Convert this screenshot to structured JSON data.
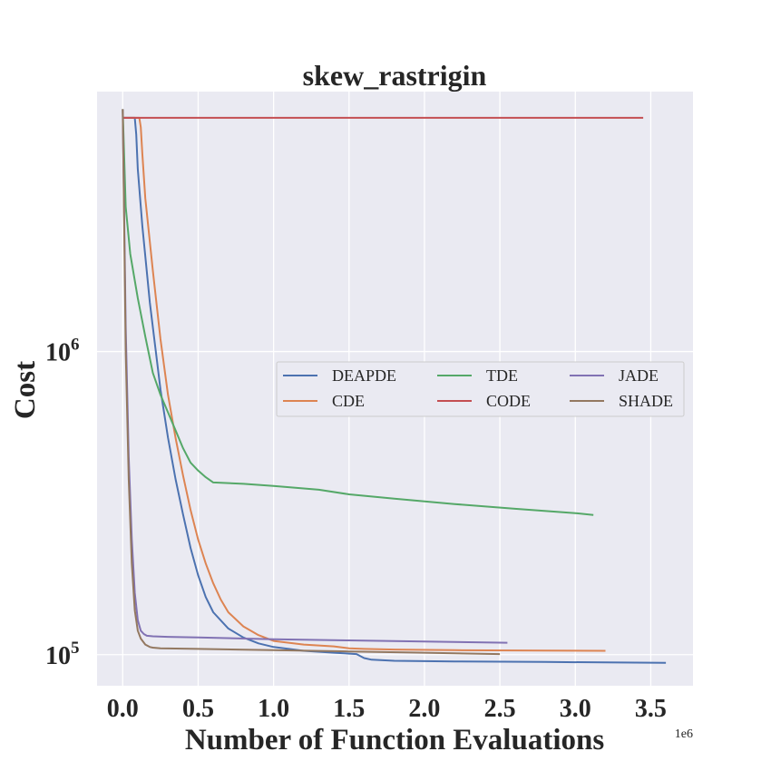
{
  "chart_data": {
    "type": "line",
    "title": "skew_rastrigin",
    "xlabel": "Number of Function Evaluations",
    "ylabel": "Cost",
    "x_offset_label": "1e6",
    "y_scale": "log",
    "xlim": [
      -0.17,
      3.78
    ],
    "ylim": [
      79000,
      7200000
    ],
    "x_ticks": [
      0.0,
      0.5,
      1.0,
      1.5,
      2.0,
      2.5,
      3.0,
      3.5
    ],
    "x_tick_labels": [
      "0.0",
      "0.5",
      "1.0",
      "1.5",
      "2.0",
      "2.5",
      "3.0",
      "3.5"
    ],
    "y_ticks": [
      {
        "value": 100000,
        "base": "10",
        "exp": "5"
      },
      {
        "value": 1000000,
        "base": "10",
        "exp": "6"
      }
    ],
    "grid": true,
    "legend": {
      "placement": "center-right",
      "columns": 3
    },
    "series": [
      {
        "name": "DEAPDE",
        "color": "#4c72b0",
        "x": [
          0,
          0.08,
          0.09,
          0.1,
          0.13,
          0.18,
          0.25,
          0.3,
          0.35,
          0.4,
          0.45,
          0.5,
          0.55,
          0.6,
          0.7,
          0.8,
          0.9,
          1.0,
          1.2,
          1.4,
          1.55,
          1.6,
          1.65,
          1.8,
          2.2,
          2.8,
          3.2,
          3.6
        ],
        "y": [
          5900000.0,
          5900000.0,
          5200000.0,
          4000000.0,
          2600000.0,
          1450000.0,
          750000,
          520000,
          380000,
          290000,
          225000,
          183000,
          155000,
          138000,
          122000,
          114000,
          109000,
          106000,
          103000,
          101500,
          100500,
          97500,
          96300,
          95500,
          95000,
          94600,
          94300,
          94000
        ]
      },
      {
        "name": "CDE",
        "color": "#dd8452",
        "x": [
          0,
          0.11,
          0.12,
          0.13,
          0.15,
          0.2,
          0.25,
          0.3,
          0.35,
          0.4,
          0.45,
          0.5,
          0.55,
          0.6,
          0.65,
          0.7,
          0.8,
          0.9,
          1.0,
          1.2,
          1.4,
          1.5,
          1.6,
          1.8,
          2.2,
          2.8,
          3.2
        ],
        "y": [
          5900000.0,
          5900000.0,
          5500000.0,
          4500000.0,
          3200000.0,
          1850000.0,
          1100000.0,
          720000,
          520000,
          390000,
          300000,
          240000,
          200000,
          172000,
          152000,
          138000,
          124000,
          116000,
          111000,
          108000,
          106500,
          105000,
          104500,
          104000,
          103500,
          103200,
          103000
        ]
      },
      {
        "name": "TDE",
        "color": "#55a868",
        "x": [
          0,
          0.02,
          0.05,
          0.1,
          0.15,
          0.2,
          0.25,
          0.3,
          0.35,
          0.4,
          0.45,
          0.5,
          0.55,
          0.6,
          0.8,
          1.0,
          1.3,
          1.5,
          1.8,
          2.2,
          2.6,
          3.0,
          3.12
        ],
        "y": [
          6300000.0,
          3000000.0,
          2100000.0,
          1500000.0,
          1120000.0,
          850000,
          720000,
          630000,
          550000,
          480000,
          430000,
          405000,
          385000,
          370000,
          366000,
          360000,
          350000,
          338000,
          327000,
          314000,
          303000,
          293000,
          289000
        ]
      },
      {
        "name": "CODE",
        "color": "#c44e52",
        "x": [
          0,
          0.08,
          1.0,
          2.0,
          3.0,
          3.45
        ],
        "y": [
          5900000.0,
          5900000.0,
          5900000.0,
          5900000.0,
          5900000.0,
          5900000.0
        ]
      },
      {
        "name": "JADE",
        "color": "#8172b3",
        "x": [
          0,
          0.02,
          0.04,
          0.06,
          0.08,
          0.1,
          0.12,
          0.14,
          0.16,
          0.2,
          0.3,
          0.5,
          1.0,
          1.5,
          2.0,
          2.55
        ],
        "y": [
          6300000.0,
          1200000.0,
          450000,
          240000,
          160000,
          130000,
          120000,
          117000,
          115500,
          115000,
          114500,
          114000,
          112500,
          111500,
          110500,
          109500
        ]
      },
      {
        "name": "SHADE",
        "color": "#937860",
        "x": [
          0,
          0.02,
          0.04,
          0.06,
          0.08,
          0.1,
          0.12,
          0.15,
          0.18,
          0.2,
          0.25,
          0.5,
          1.0,
          1.5,
          2.0,
          2.5
        ],
        "y": [
          6300000.0,
          1000000.0,
          380000,
          200000,
          140000,
          120000,
          113000,
          108000,
          106000,
          105500,
          105000,
          104500,
          103500,
          102500,
          101500,
          100500
        ]
      }
    ]
  }
}
